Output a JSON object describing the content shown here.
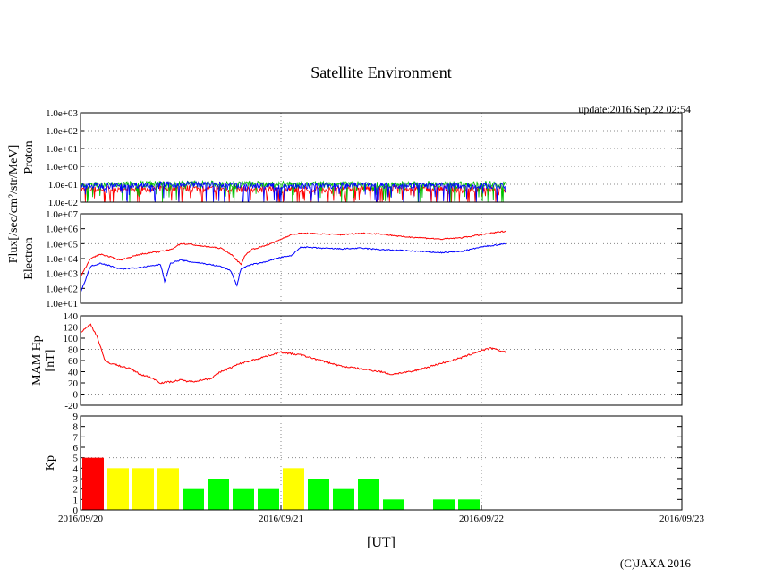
{
  "chart_data": {
    "type": "line",
    "title": "Satellite Environment",
    "update_text": "update:2016 Sep 22 02:54",
    "copyright": "(C)JAXA 2016",
    "xlabel": "[UT]",
    "x_ticks": [
      "2016/09/20",
      "2016/09/21",
      "2016/09/22",
      "2016/09/23"
    ],
    "x_range_days": [
      0,
      3
    ],
    "shared_ylabel": "Flux[/sec/cm²/str/MeV]",
    "panels": [
      {
        "id": "proton",
        "ylabel": "Proton",
        "scale": "log",
        "ylim_exp": [
          -2,
          3
        ],
        "y_ticks": [
          "1.0e-02",
          "1.0e-01",
          "1.0e+00",
          "1.0e+01",
          "1.0e+02",
          "1.0e+03"
        ],
        "series": [
          {
            "color": "#ff0000",
            "style": "noise",
            "x": [
              0,
              0.5,
              1.0,
              1.5,
              2.12
            ],
            "y": [
              0.05,
              0.06,
              0.05,
              0.06,
              0.05
            ]
          },
          {
            "color": "#00c000",
            "style": "noise",
            "x": [
              0,
              0.5,
              1.0,
              1.5,
              2.12
            ],
            "y": [
              0.09,
              0.11,
              0.1,
              0.1,
              0.1
            ]
          },
          {
            "color": "#0000ff",
            "style": "noise",
            "x": [
              0,
              0.5,
              1.0,
              1.5,
              2.12
            ],
            "y": [
              0.08,
              0.1,
              0.08,
              0.09,
              0.08
            ]
          }
        ]
      },
      {
        "id": "electron",
        "ylabel": "Electron",
        "scale": "log",
        "ylim_exp": [
          1,
          7
        ],
        "y_ticks": [
          "1.0e+01",
          "1.0e+02",
          "1.0e+03",
          "1.0e+04",
          "1.0e+05",
          "1.0e+06",
          "1.0e+07"
        ],
        "series": [
          {
            "color": "#ff0000",
            "style": "line",
            "x": [
              0,
              0.05,
              0.1,
              0.2,
              0.3,
              0.4,
              0.45,
              0.5,
              0.55,
              0.6,
              0.7,
              0.75,
              0.8,
              0.82,
              0.85,
              0.9,
              0.95,
              1.0,
              1.05,
              1.1,
              1.2,
              1.3,
              1.4,
              1.5,
              1.6,
              1.7,
              1.8,
              1.9,
              2.0,
              2.12
            ],
            "y": [
              600,
              10000,
              20000,
              8000,
              20000,
              30000,
              40000,
              100000,
              90000,
              70000,
              50000,
              20000,
              4000,
              15000,
              40000,
              60000,
              100000,
              200000,
              400000,
              500000,
              450000,
              400000,
              500000,
              450000,
              300000,
              250000,
              200000,
              250000,
              400000,
              700000
            ]
          },
          {
            "color": "#0000ff",
            "style": "line",
            "x": [
              0,
              0.05,
              0.1,
              0.2,
              0.3,
              0.4,
              0.42,
              0.45,
              0.5,
              0.55,
              0.6,
              0.7,
              0.75,
              0.78,
              0.8,
              0.85,
              0.9,
              0.95,
              1.0,
              1.05,
              1.1,
              1.2,
              1.3,
              1.4,
              1.5,
              1.6,
              1.7,
              1.8,
              1.9,
              2.0,
              2.12
            ],
            "y": [
              50,
              3000,
              5000,
              2000,
              2500,
              4000,
              300,
              5000,
              8000,
              6000,
              5000,
              3000,
              1500,
              150,
              2000,
              4000,
              5000,
              8000,
              12000,
              15000,
              60000,
              50000,
              45000,
              50000,
              40000,
              35000,
              30000,
              25000,
              30000,
              60000,
              100000
            ]
          }
        ]
      },
      {
        "id": "mam",
        "ylabel": "MAM Hp",
        "ylabel2": "[nT]",
        "scale": "linear",
        "ylim": [
          -20,
          140
        ],
        "y_ticks": [
          "-20",
          "0",
          "20",
          "40",
          "60",
          "80",
          "100",
          "120",
          "140"
        ],
        "series": [
          {
            "color": "#ff0000",
            "style": "line",
            "x": [
              0,
              0.05,
              0.08,
              0.1,
              0.12,
              0.15,
              0.2,
              0.25,
              0.3,
              0.35,
              0.4,
              0.45,
              0.5,
              0.55,
              0.6,
              0.65,
              0.7,
              0.8,
              0.9,
              1.0,
              1.05,
              1.1,
              1.2,
              1.3,
              1.4,
              1.5,
              1.55,
              1.6,
              1.65,
              1.7,
              1.8,
              1.9,
              2.0,
              2.05,
              2.12
            ],
            "y": [
              110,
              125,
              105,
              85,
              60,
              55,
              50,
              45,
              35,
              30,
              20,
              22,
              25,
              22,
              25,
              28,
              40,
              55,
              65,
              75,
              72,
              70,
              60,
              50,
              45,
              40,
              35,
              38,
              40,
              45,
              55,
              65,
              78,
              82,
              75
            ]
          }
        ]
      },
      {
        "id": "kp",
        "ylabel": "Kp",
        "scale": "linear",
        "ylim": [
          0,
          9
        ],
        "y_ticks": [
          "0",
          "1",
          "2",
          "3",
          "4",
          "5",
          "6",
          "7",
          "8",
          "9"
        ],
        "bars": [
          {
            "x": 0.0,
            "value": 5,
            "color": "#ff0000"
          },
          {
            "x": 0.125,
            "value": 4,
            "color": "#ffff00"
          },
          {
            "x": 0.25,
            "value": 4,
            "color": "#ffff00"
          },
          {
            "x": 0.375,
            "value": 4,
            "color": "#ffff00"
          },
          {
            "x": 0.5,
            "value": 2,
            "color": "#00ff00"
          },
          {
            "x": 0.625,
            "value": 3,
            "color": "#00ff00"
          },
          {
            "x": 0.75,
            "value": 2,
            "color": "#00ff00"
          },
          {
            "x": 0.875,
            "value": 2,
            "color": "#00ff00"
          },
          {
            "x": 1.0,
            "value": 4,
            "color": "#ffff00"
          },
          {
            "x": 1.125,
            "value": 3,
            "color": "#00ff00"
          },
          {
            "x": 1.25,
            "value": 2,
            "color": "#00ff00"
          },
          {
            "x": 1.375,
            "value": 3,
            "color": "#00ff00"
          },
          {
            "x": 1.5,
            "value": 1,
            "color": "#00ff00"
          },
          {
            "x": 1.75,
            "value": 1,
            "color": "#00ff00"
          },
          {
            "x": 1.875,
            "value": 1,
            "color": "#00ff00"
          }
        ]
      }
    ]
  }
}
